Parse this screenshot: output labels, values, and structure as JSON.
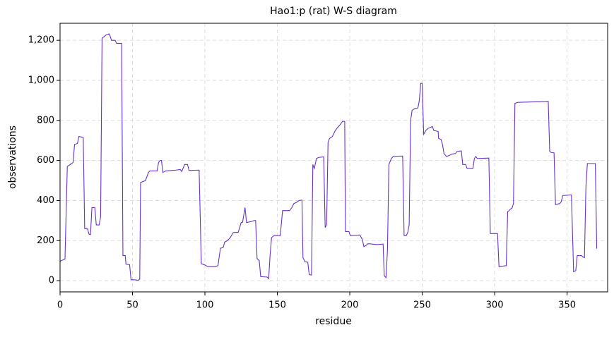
{
  "chart_data": {
    "type": "line",
    "title": "Hao1:p (rat) W-S diagram",
    "xlabel": "residue",
    "ylabel": "observations",
    "x": [
      0,
      3.4,
      5,
      9,
      10,
      12,
      13,
      16,
      17,
      19,
      20,
      21,
      22,
      24,
      25,
      27,
      28,
      29,
      32,
      34,
      35.5,
      38,
      39,
      42.5,
      43.4,
      45,
      45.5,
      48,
      49,
      52,
      54,
      55,
      55.6,
      59,
      61,
      62,
      67,
      68,
      69,
      70,
      71,
      73,
      80,
      83,
      84,
      86,
      88,
      89,
      96,
      97.5,
      100,
      102,
      107,
      109,
      110.7,
      112.6,
      113.6,
      115.5,
      117.5,
      119.5,
      123,
      125,
      126,
      127.7,
      128.7,
      132,
      134,
      135,
      136,
      137.5,
      138.5,
      143,
      144,
      145,
      146,
      147.7,
      152,
      153.6,
      158.5,
      160,
      161.4,
      163,
      165,
      167,
      167.7,
      169,
      171,
      172,
      173.6,
      174.5,
      175.5,
      177,
      178.5,
      182,
      183,
      184,
      185,
      186,
      188,
      190,
      191.6,
      193.5,
      195,
      196.5,
      197,
      199.4,
      200.4,
      207,
      208.7,
      209.7,
      211,
      212.6,
      219,
      223,
      223.8,
      225,
      226,
      227,
      228.7,
      230,
      236.5,
      237.5,
      239,
      240,
      241,
      242,
      243,
      245,
      247,
      248,
      249,
      250,
      251,
      252.5,
      254,
      257,
      258,
      261,
      261.3,
      263,
      264,
      265,
      266.7,
      268.6,
      270.6,
      273,
      274,
      277,
      278,
      280,
      281,
      285,
      286,
      287,
      288,
      296,
      297,
      302,
      303,
      308,
      309,
      310,
      311,
      312,
      313,
      314,
      316,
      337,
      338,
      339,
      341,
      342,
      345,
      346,
      347,
      353,
      354.5,
      356,
      357,
      360,
      361,
      362,
      363,
      364,
      369.5,
      370.5
    ],
    "values": [
      97,
      108,
      570,
      590,
      680,
      685,
      720,
      715,
      260,
      258,
      232,
      230,
      365,
      365,
      278,
      278,
      320,
      1210,
      1228,
      1232,
      1200,
      1200,
      1185,
      1185,
      125,
      125,
      82,
      80,
      5,
      4,
      2,
      8,
      490,
      500,
      540,
      548,
      548,
      590,
      600,
      600,
      540,
      548,
      552,
      555,
      545,
      580,
      580,
      550,
      552,
      85,
      78,
      70,
      70,
      75,
      162,
      165,
      192,
      200,
      215,
      240,
      242,
      290,
      292,
      365,
      290,
      295,
      300,
      300,
      110,
      100,
      20,
      18,
      10,
      130,
      215,
      225,
      225,
      350,
      350,
      365,
      385,
      390,
      400,
      402,
      115,
      95,
      92,
      30,
      28,
      580,
      560,
      610,
      615,
      618,
      265,
      280,
      690,
      710,
      720,
      750,
      765,
      780,
      795,
      795,
      245,
      245,
      225,
      228,
      205,
      170,
      175,
      185,
      180,
      183,
      25,
      15,
      150,
      580,
      610,
      620,
      622,
      225,
      225,
      240,
      280,
      800,
      850,
      860,
      862,
      900,
      985,
      985,
      730,
      750,
      760,
      770,
      750,
      745,
      710,
      705,
      680,
      635,
      620,
      625,
      632,
      635,
      645,
      648,
      580,
      580,
      560,
      560,
      610,
      620,
      610,
      612,
      235,
      235,
      70,
      75,
      345,
      350,
      358,
      362,
      385,
      885,
      890,
      895,
      645,
      640,
      638,
      380,
      385,
      395,
      425,
      428,
      45,
      50,
      125,
      125,
      118,
      115,
      465,
      585,
      585,
      160
    ],
    "color": "#6633cc",
    "xlim": [
      0,
      378
    ],
    "xticks": [
      0,
      50,
      100,
      150,
      200,
      250,
      300,
      350
    ],
    "ylim": [
      -56,
      1285
    ],
    "yticks": [
      0,
      200,
      400,
      600,
      800,
      {
        "value": 1000,
        "label": "1,000"
      },
      {
        "value": 1200,
        "label": "1,200"
      }
    ],
    "grid": true
  }
}
